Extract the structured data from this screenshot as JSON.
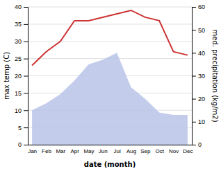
{
  "chart_data": {
    "type": "line",
    "categories": [
      "Jan",
      "Feb",
      "Mar",
      "Apr",
      "May",
      "Jun",
      "Jul",
      "Aug",
      "Sep",
      "Oct",
      "Nov",
      "Dec"
    ],
    "series": [
      {
        "type": "line",
        "color": "#cc3333",
        "values": [
          23,
          27,
          30,
          36,
          36,
          37,
          38,
          39,
          37,
          36,
          27,
          26
        ]
      },
      {
        "type": "area",
        "color": "#b8c4e8",
        "axis": "y2",
        "values": [
          15,
          18,
          22,
          28,
          35,
          37,
          40,
          25,
          20,
          14,
          13,
          13
        ]
      }
    ],
    "xlabel": "date (month)",
    "ylabel": "max temp (C)",
    "y2label": "med. precipitation (kg/m2)",
    "ylim": [
      0,
      40
    ],
    "yticks": [
      0,
      5,
      10,
      15,
      20,
      25,
      30,
      35,
      40
    ],
    "y2lim": [
      0,
      60
    ],
    "y2ticks": [
      0,
      10,
      20,
      30,
      40,
      50,
      60
    ],
    "grid": true
  }
}
